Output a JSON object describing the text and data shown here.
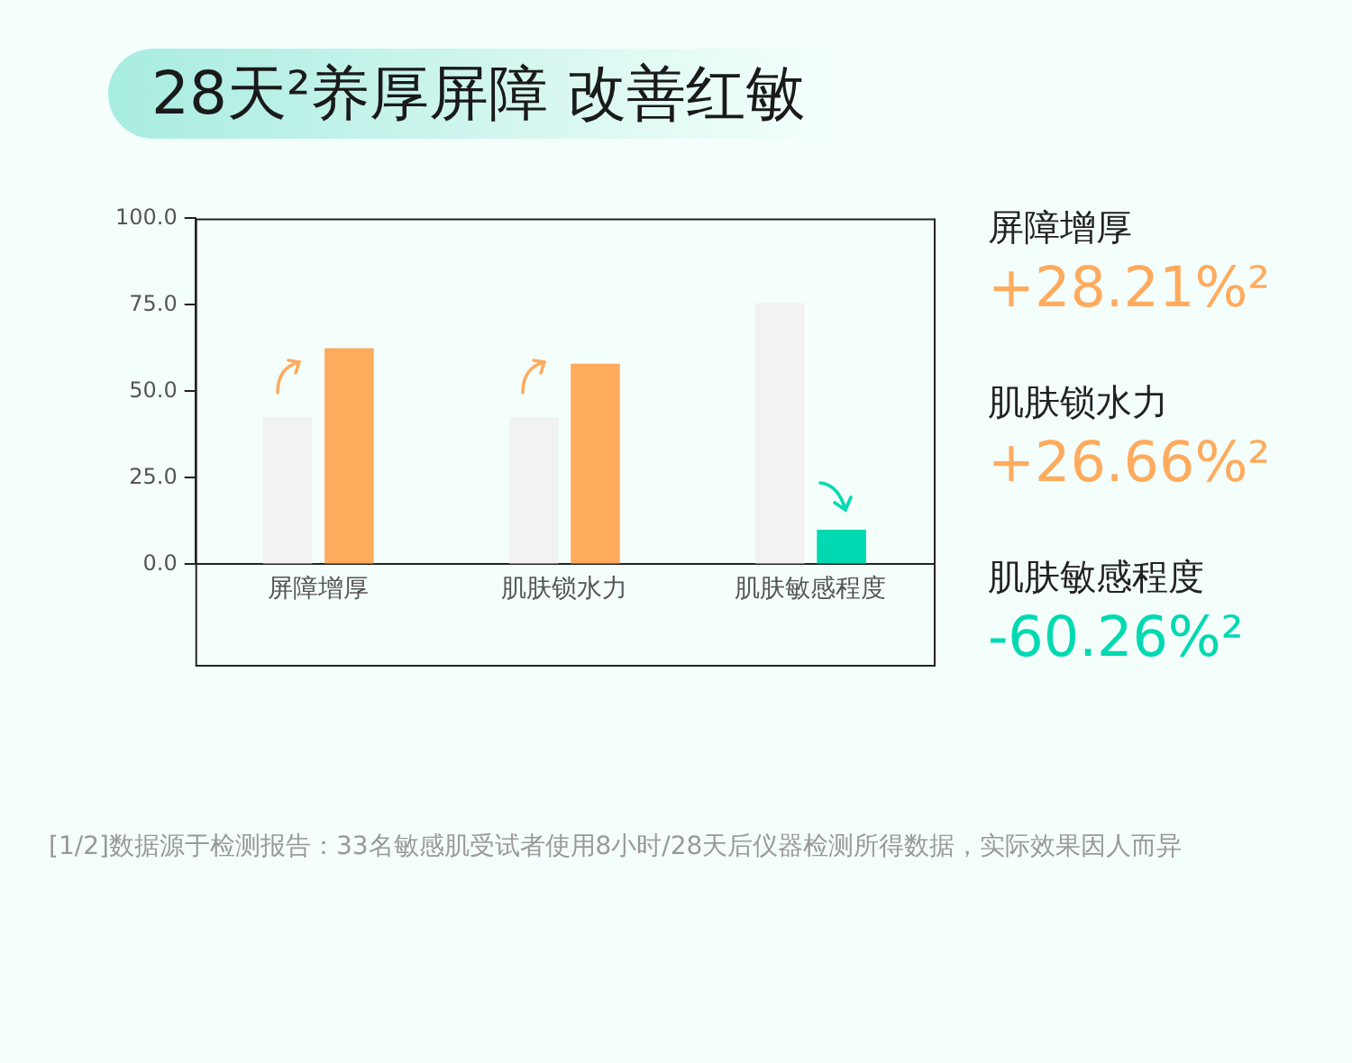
{
  "chart_data": {
    "type": "bar",
    "title": "28天²养厚屏障 改善红敏",
    "categories": [
      "屏障增厚",
      "肌肤锁水力",
      "肌肤敏感程度"
    ],
    "series": [
      {
        "color": "#f2f2f2",
        "values": [
          42.5,
          42.5,
          75.5
        ]
      },
      {
        "colors": [
          "#ffab5e",
          "#ffab5e",
          "#00d9b1"
        ],
        "values": [
          62.5,
          58,
          10
        ]
      }
    ],
    "ylim": [
      0,
      100
    ],
    "yticks": [
      {
        "value": 0,
        "label": "0.0"
      },
      {
        "value": 25,
        "label": "25.0"
      },
      {
        "value": 50,
        "label": "50.0"
      },
      {
        "value": 75,
        "label": "75.0"
      },
      {
        "value": 100,
        "label": "100.0"
      }
    ],
    "grid": false,
    "legend": false,
    "annotations": [
      "屏障增厚",
      "+28.21%²",
      "肌肤锁水力",
      "+26.66%²",
      "肌肤敏感程度",
      "-60.26%²",
      "[1/2]数据源于检测报告：33名敏感肌受试者使用8小时/28天后仪器检测所得数据，实际效果因人而异"
    ]
  }
}
